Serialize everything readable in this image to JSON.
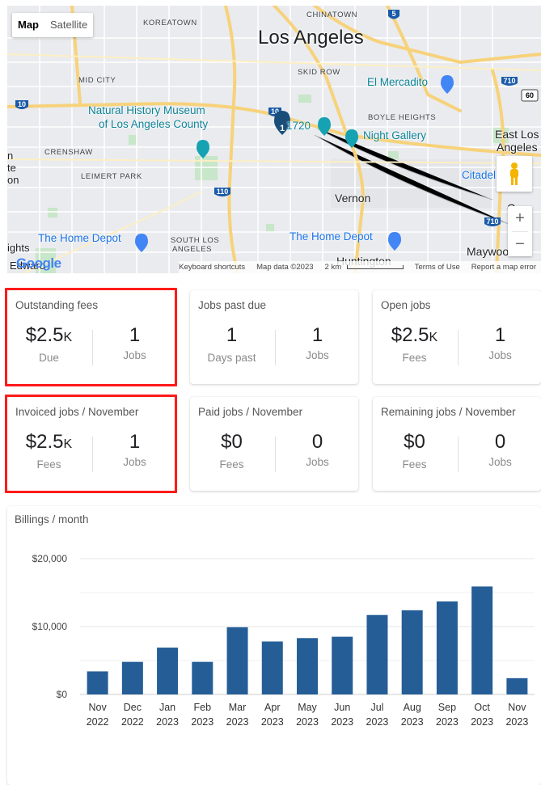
{
  "map": {
    "type_control": {
      "map": "Map",
      "satellite": "Satellite"
    },
    "labels": {
      "city": "Los Angeles",
      "chinatown": "CHINATOWN",
      "koreatown": "KOREATOWN",
      "skid_row": "SKID ROW",
      "mid_city": "MID CITY",
      "crenshaw": "CRENSHAW",
      "leimert_park": "LEIMERT PARK",
      "south_los_angeles_1": "SOUTH LOS",
      "south_los_angeles_2": "ANGELES",
      "boyle_heights": "BOYLE HEIGHTS",
      "museum_1": "Natural History Museum",
      "museum_2": "of Los Angeles County",
      "mercadito": "El Mercadito",
      "poi_1720": "1720",
      "night_gallery": "Night Gallery",
      "east_los_1": "East Los",
      "east_los_2": "Angeles",
      "citadel": "Citadel",
      "vernon": "Vernon",
      "home_depot_1": "The Home Depot",
      "home_depot_2": "The Home Depot",
      "maywood": "Maywood",
      "huntington": "Huntington",
      "left_edge_1": "n",
      "left_edge_2": "te",
      "left_edge_3": "on",
      "left_edge_4": "ights",
      "left_edge_5": "Edward",
      "right_edge_c": "C"
    },
    "marker_count": "1",
    "route_shields": [
      "5",
      "10",
      "10",
      "110",
      "710",
      "710",
      "60"
    ],
    "zoom_in": "+",
    "zoom_out": "−",
    "google_logo": "Google",
    "attribution": {
      "keyboard": "Keyboard shortcuts",
      "data": "Map data ©2023",
      "scale": "2 km",
      "terms": "Terms of Use",
      "report": "Report a map error"
    }
  },
  "cards": [
    {
      "title": "Outstanding fees",
      "left": {
        "value": "$2.5",
        "suffix": "K",
        "label": "Due"
      },
      "right": {
        "value": "1",
        "label": "Jobs"
      }
    },
    {
      "title": "Jobs past due",
      "left": {
        "value": "1",
        "suffix": "",
        "label": "Days past"
      },
      "right": {
        "value": "1",
        "label": "Jobs"
      }
    },
    {
      "title": "Open jobs",
      "left": {
        "value": "$2.5",
        "suffix": "K",
        "label": "Fees"
      },
      "right": {
        "value": "1",
        "label": "Jobs"
      }
    },
    {
      "title": "Invoiced jobs / November",
      "left": {
        "value": "$2.5",
        "suffix": "K",
        "label": "Fees"
      },
      "right": {
        "value": "1",
        "label": "Jobs"
      }
    },
    {
      "title": "Paid jobs / November",
      "left": {
        "value": "$0",
        "suffix": "",
        "label": "Fees"
      },
      "right": {
        "value": "0",
        "label": "Jobs"
      }
    },
    {
      "title": "Remaining jobs / November",
      "left": {
        "value": "$0",
        "suffix": "",
        "label": "Fees"
      },
      "right": {
        "value": "0",
        "label": "Jobs"
      }
    }
  ],
  "colors": {
    "highlight": "#ff1a1a",
    "bar": "#255e97",
    "poi": "#0d8397"
  },
  "chart_data": {
    "type": "bar",
    "title": "Billings / month",
    "categories": [
      "Nov 2022",
      "Dec 2022",
      "Jan 2023",
      "Feb 2023",
      "Mar 2023",
      "Apr 2023",
      "May 2023",
      "Jun 2023",
      "Jul 2023",
      "Aug 2023",
      "Sep 2023",
      "Oct 2023",
      "Nov 2023"
    ],
    "category_lines": [
      [
        "Nov",
        "2022"
      ],
      [
        "Dec",
        "2022"
      ],
      [
        "Jan",
        "2023"
      ],
      [
        "Feb",
        "2023"
      ],
      [
        "Mar",
        "2023"
      ],
      [
        "Apr",
        "2023"
      ],
      [
        "May",
        "2023"
      ],
      [
        "Jun",
        "2023"
      ],
      [
        "Jul",
        "2023"
      ],
      [
        "Aug",
        "2023"
      ],
      [
        "Sep",
        "2023"
      ],
      [
        "Oct",
        "2023"
      ],
      [
        "Nov",
        "2023"
      ]
    ],
    "values": [
      3400,
      4800,
      6900,
      4800,
      9900,
      7800,
      8300,
      8500,
      11700,
      12400,
      13700,
      15900,
      2400
    ],
    "yticks": [
      0,
      10000,
      20000
    ],
    "ytick_labels": [
      "$0",
      "$10,000",
      "$20,000"
    ],
    "ylim": [
      0,
      20000
    ],
    "grid": true,
    "xlabel": "",
    "ylabel": ""
  }
}
